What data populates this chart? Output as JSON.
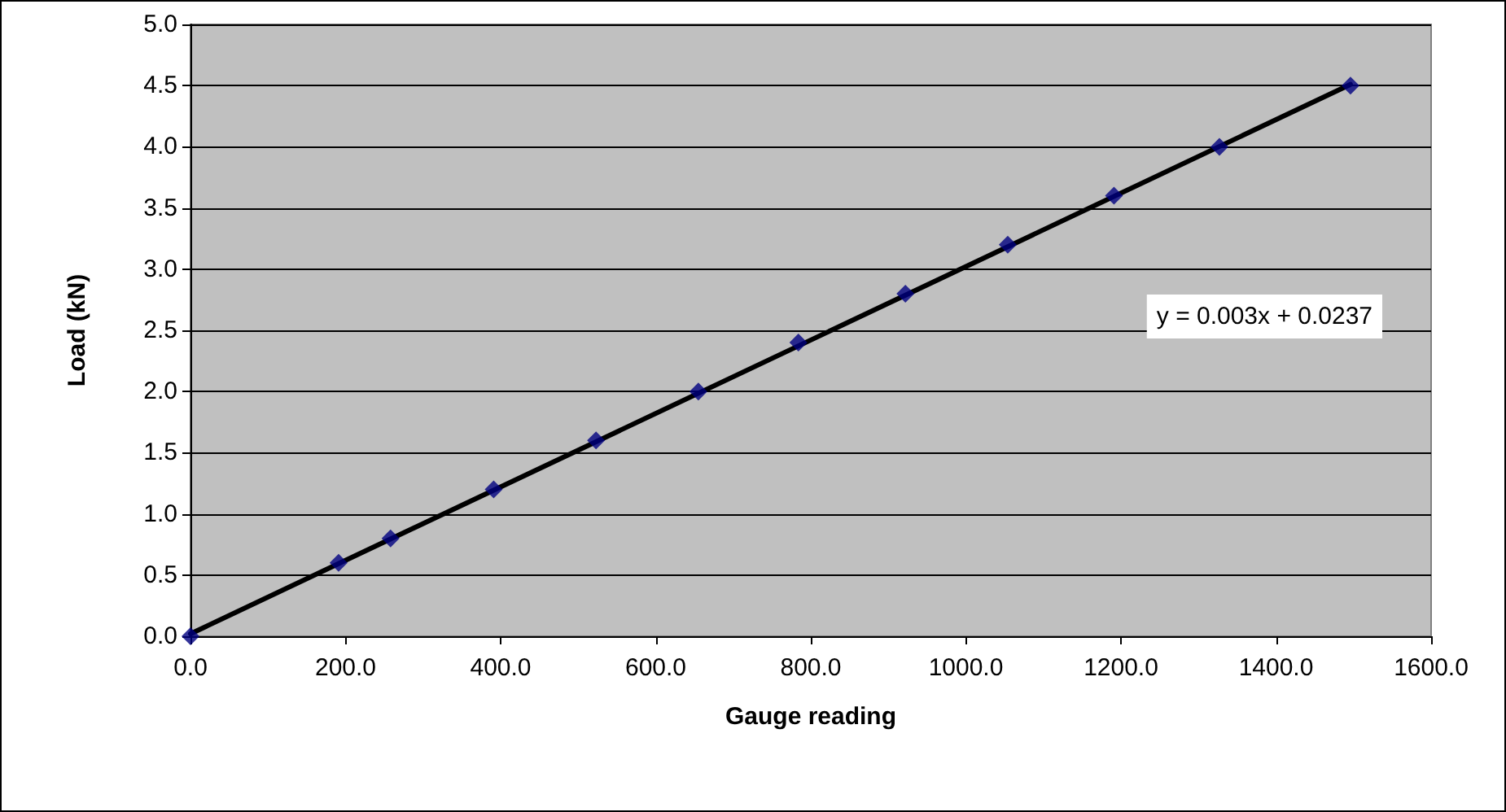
{
  "chart_data": {
    "type": "scatter",
    "xlabel": "Gauge reading",
    "ylabel": "Load (kN)",
    "series": [
      {
        "color": "#000080",
        "marker": "diamond",
        "x": [
          0,
          191,
          258,
          391,
          523,
          655,
          784,
          922,
          1054,
          1191,
          1327,
          1496
        ],
        "values": [
          0.0,
          0.6,
          0.8,
          1.2,
          1.6,
          2.0,
          2.4,
          2.8,
          3.2,
          3.6,
          4.0,
          4.5
        ]
      },
      {
        "type": "line",
        "color": "#000000",
        "marker": "none",
        "line_style": "solid",
        "x": [
          0,
          1496
        ],
        "values": [
          0.02,
          4.51
        ]
      }
    ],
    "xlim": [
      0,
      1600
    ],
    "xticks": [
      {
        "value": 0,
        "label": "0.0"
      },
      {
        "value": 200,
        "label": "200.0"
      },
      {
        "value": 400,
        "label": "400.0"
      },
      {
        "value": 600,
        "label": "600.0"
      },
      {
        "value": 800,
        "label": "800.0"
      },
      {
        "value": 1000,
        "label": "1000.0"
      },
      {
        "value": 1200,
        "label": "1200.0"
      },
      {
        "value": 1400,
        "label": "1400.0"
      },
      {
        "value": 1600,
        "label": "1600.0"
      }
    ],
    "ylim": [
      0,
      5
    ],
    "yticks": [
      {
        "value": 0,
        "label": "0.0"
      },
      {
        "value": 0.5,
        "label": "0.5"
      },
      {
        "value": 1,
        "label": "1.0"
      },
      {
        "value": 1.5,
        "label": "1.5"
      },
      {
        "value": 2,
        "label": "2.0"
      },
      {
        "value": 2.5,
        "label": "2.5"
      },
      {
        "value": 3,
        "label": "3.0"
      },
      {
        "value": 3.5,
        "label": "3.5"
      },
      {
        "value": 4,
        "label": "4.0"
      },
      {
        "value": 4.5,
        "label": "4.5"
      },
      {
        "value": 5,
        "label": "5.0"
      }
    ],
    "grid": "y",
    "annotations": [
      "y = 0.003x + 0.0237"
    ]
  }
}
